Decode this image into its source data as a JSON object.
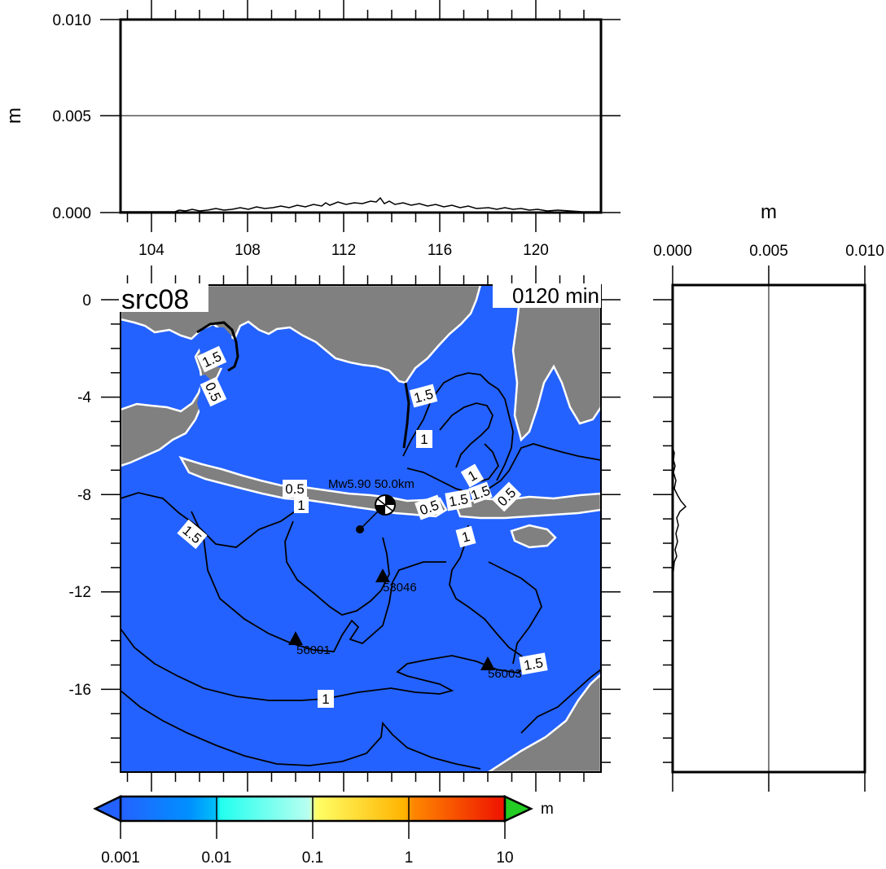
{
  "top_profile": {
    "ylabel": "m",
    "y_ticks": [
      "0.010",
      "0.005",
      "0.000"
    ],
    "x_ticks": [
      "104",
      "108",
      "112",
      "116",
      "120"
    ],
    "xlim": [
      102.6,
      122.6
    ],
    "ylim": [
      0,
      0.01
    ]
  },
  "right_profile": {
    "xlabel": "m",
    "x_ticks": [
      "0.000",
      "0.005",
      "0.010"
    ],
    "xlim": [
      0,
      0.01
    ]
  },
  "map": {
    "title": "src08",
    "time_label": "0120 min",
    "xlim": [
      102.6,
      122.6
    ],
    "ylim": [
      -19.3,
      0.7
    ],
    "y_ticks": [
      "0",
      "-4",
      "-8",
      "-12",
      "-16"
    ],
    "ocean_color": "#2462ff",
    "land_color": "#808080",
    "event": {
      "label": "Mw5.90 50.0km",
      "lon": 113.8,
      "lat": -8.4
    },
    "stations": [
      {
        "id": "53046",
        "lon": 113.3,
        "lat": -11.4
      },
      {
        "id": "56001",
        "lon": 110.2,
        "lat": -13.9
      },
      {
        "id": "56003",
        "lon": 118.0,
        "lat": -15.0
      }
    ],
    "contour_labels": [
      "1.5",
      "0.5",
      "1.5",
      "1",
      "1",
      "0.5",
      "1",
      "1.5",
      "0.5",
      "1.5",
      "0.5",
      "1",
      "1.5",
      "1",
      "1.5"
    ]
  },
  "colorbar": {
    "unit": "m",
    "ticks": [
      "0.001",
      "0.01",
      "0.1",
      "1",
      "10"
    ],
    "scale": "log",
    "over_color": "#22cc22",
    "under_color": "#2462ff"
  }
}
